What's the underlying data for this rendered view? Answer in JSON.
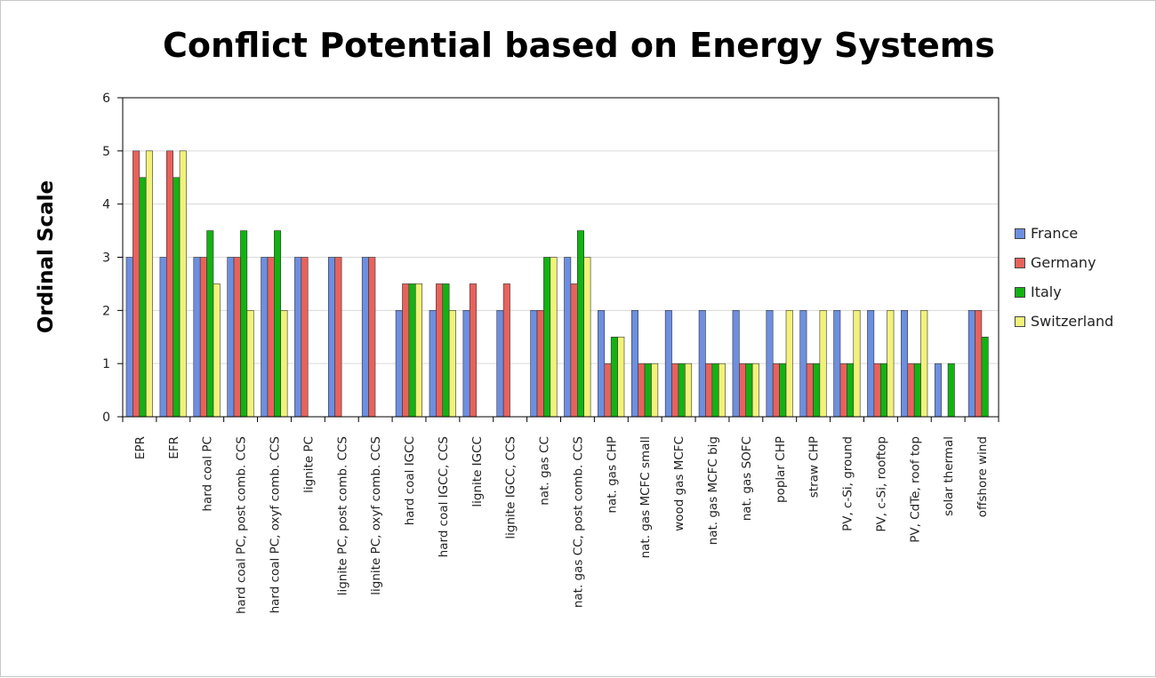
{
  "chart_data": {
    "type": "bar",
    "title": "Conflict Potential based on Energy Systems",
    "xlabel": "",
    "ylabel": "Ordinal Scale",
    "ylim": [
      0,
      6
    ],
    "yticks": [
      "0",
      "1",
      "2",
      "3",
      "4",
      "5",
      "6"
    ],
    "grid": true,
    "legend_position": "right",
    "categories": [
      "EPR",
      "EFR",
      "hard coal PC",
      "hard coal PC, post comb. CCS",
      "hard coal PC, oxyf comb. CCS",
      "lignite PC",
      "lignite PC, post comb. CCS",
      "lignite PC, oxyf comb. CCS",
      "hard coal IGCC",
      "hard coal IGCC, CCS",
      "lignite IGCC",
      "lignite IGCC, CCS",
      "nat. gas CC",
      "nat. gas CC, post comb. CCS",
      "nat. gas CHP",
      "nat. gas MCFC small",
      "wood gas MCFC",
      "nat. gas MCFC big",
      "nat. gas SOFC",
      "poplar CHP",
      "straw CHP",
      "PV, c-Si, ground",
      "PV, c-Si, rooftop",
      "PV, CdTe, roof top",
      "solar thermal",
      "offshore wind"
    ],
    "series": [
      {
        "name": "France",
        "color": "#6d8fe0",
        "values": [
          3,
          3,
          3,
          3,
          3,
          3,
          3,
          3,
          2,
          2,
          2,
          2,
          2,
          3,
          2,
          2,
          2,
          2,
          2,
          2,
          2,
          2,
          2,
          2,
          1,
          2
        ]
      },
      {
        "name": "Germany",
        "color": "#e8625c",
        "values": [
          5,
          5,
          3,
          3,
          3,
          3,
          3,
          3,
          2.5,
          2.5,
          2.5,
          2.5,
          2,
          2.5,
          1,
          1,
          1,
          1,
          1,
          1,
          1,
          1,
          1,
          1,
          0,
          2
        ]
      },
      {
        "name": "Italy",
        "color": "#13b213",
        "values": [
          4.5,
          4.5,
          3.5,
          3.5,
          3.5,
          0,
          0,
          0,
          2.5,
          2.5,
          0,
          0,
          3,
          3.5,
          1.5,
          1,
          1,
          1,
          1,
          1,
          1,
          1,
          1,
          1,
          1,
          1.5
        ]
      },
      {
        "name": "Switzerland",
        "color": "#f2f27a",
        "values": [
          5,
          5,
          2.5,
          2,
          2,
          0,
          0,
          0,
          2.5,
          2,
          0,
          0,
          3,
          3,
          1.5,
          1,
          1,
          1,
          1,
          2,
          2,
          2,
          2,
          2,
          0,
          0
        ]
      }
    ]
  }
}
